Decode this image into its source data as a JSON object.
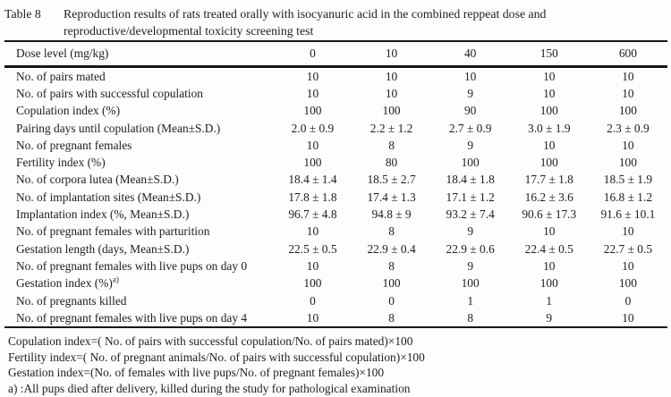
{
  "title": {
    "label": "Table 8",
    "line1": "Reproduction results of rats treated orally with isocyanuric acid in the combined reppeat dose and",
    "line2": "reproductive/developmental toxicity screening test"
  },
  "table": {
    "header": {
      "label": "Dose level (mg/kg)",
      "doses": [
        "0",
        "10",
        "40",
        "150",
        "600"
      ]
    },
    "rows": [
      {
        "label": "No. of pairs mated",
        "values": [
          "10",
          "10",
          "10",
          "10",
          "10"
        ]
      },
      {
        "label": "No. of pairs with successful copulation",
        "values": [
          "10",
          "10",
          "9",
          "10",
          "10"
        ]
      },
      {
        "label": "Copulation index (%)",
        "values": [
          "100",
          "100",
          "90",
          "100",
          "100"
        ]
      },
      {
        "label": "Pairing days until copulation (Mean±S.D.)",
        "values": [
          "2.0 ± 0.9",
          "2.2 ± 1.2",
          "2.7 ± 0.9",
          "3.0 ± 1.9",
          "2.3 ± 0.9"
        ]
      },
      {
        "label": "No. of pregnant females",
        "values": [
          "10",
          "8",
          "9",
          "10",
          "10"
        ]
      },
      {
        "label": "Fertility index (%)",
        "values": [
          "100",
          "80",
          "100",
          "100",
          "100"
        ]
      },
      {
        "label": "No. of corpora lutea (Mean±S.D.)",
        "values": [
          "18.4 ± 1.4",
          "18.5 ± 2.7",
          "18.4 ± 1.8",
          "17.7 ± 1.8",
          "18.5 ± 1.9"
        ]
      },
      {
        "label": "No. of implantation sites (Mean±S.D.)",
        "values": [
          "17.8 ± 1.8",
          "17.4 ± 1.3",
          "17.1 ± 1.2",
          "16.2 ± 3.6",
          "16.8 ± 1.2"
        ]
      },
      {
        "label": "Implantation index (%, Mean±S.D.)",
        "values": [
          "96.7 ± 4.8",
          "94.8 ± 9",
          "93.2 ± 7.4",
          "90.6 ± 17.3",
          "91.6 ± 10.1"
        ]
      },
      {
        "label": "No. of pregnant females with parturition",
        "values": [
          "10",
          "8",
          "9",
          "10",
          "10"
        ]
      },
      {
        "label": "Gestation length (days, Mean±S.D.)",
        "values": [
          "22.5 ± 0.5",
          "22.9 ± 0.4",
          "22.9 ± 0.6",
          "22.4 ± 0.5",
          "22.7 ± 0.5"
        ]
      },
      {
        "label": "No. of pregnant females with live pups on day 0",
        "values": [
          "10",
          "8",
          "9",
          "10",
          "10"
        ]
      },
      {
        "label": "Gestation index (%)",
        "label_sup": "a)",
        "values": [
          "100",
          "100",
          "100",
          "100",
          "100"
        ]
      },
      {
        "label": "No. of pregnants killed",
        "values": [
          "0",
          "0",
          "1",
          "1",
          "0"
        ]
      },
      {
        "label": "No. of pregnant females with live pups on day 4",
        "values": [
          "10",
          "8",
          "8",
          "9",
          "10"
        ]
      }
    ]
  },
  "footnotes": [
    "Copulation index=( No. of pairs with successful copulation/No. of pairs mated)×100",
    "Fertility index=( No. of pregnant animals/No. of pairs with successful copulation)×100",
    "Gestation index=(No. of females with live pups/No. of pregnant females)×100",
    "a) :All pups died after delivery, killed during the study for pathological examination"
  ]
}
